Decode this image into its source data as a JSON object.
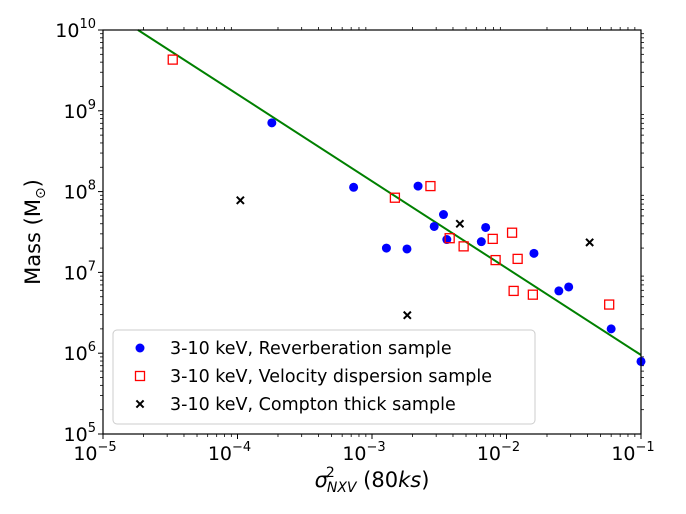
{
  "chart_data": {
    "type": "scatter",
    "xscale": "log",
    "yscale": "log",
    "xlim": [
      1e-05,
      0.1
    ],
    "ylim": [
      100000.0,
      10000000000.0
    ],
    "xlabel": {
      "sigma": "σ",
      "sup": "2",
      "sub": "NXV",
      "rest": " (80",
      "italic": "ks",
      "close": ")"
    },
    "ylabel": {
      "text": "Mass (M",
      "sub": "⊙",
      "close": ")"
    },
    "x_ticks": [
      {
        "value": 1e-05,
        "base": "10",
        "exp": "−5"
      },
      {
        "value": 0.0001,
        "base": "10",
        "exp": "−4"
      },
      {
        "value": 0.001,
        "base": "10",
        "exp": "−3"
      },
      {
        "value": 0.01,
        "base": "10",
        "exp": "−2"
      },
      {
        "value": 0.1,
        "base": "10",
        "exp": "−1"
      }
    ],
    "y_ticks": [
      {
        "value": 100000.0,
        "base": "10",
        "exp": "5"
      },
      {
        "value": 1000000.0,
        "base": "10",
        "exp": "6"
      },
      {
        "value": 10000000.0,
        "base": "10",
        "exp": "7"
      },
      {
        "value": 100000000.0,
        "base": "10",
        "exp": "8"
      },
      {
        "value": 1000000000.0,
        "base": "10",
        "exp": "9"
      },
      {
        "value": 10000000000.0,
        "base": "10",
        "exp": "10"
      }
    ],
    "fit_line": {
      "color": "#008000",
      "points": [
        [
          1.82e-05,
          10000000000.0
        ],
        [
          0.1,
          950000.0
        ]
      ]
    },
    "series": [
      {
        "name": "3-10 keV, Reverberation sample",
        "marker": "circle",
        "color": "#0000ff",
        "points": [
          [
            0.00018,
            710000000.0
          ],
          [
            0.00073,
            113000000.0
          ],
          [
            0.0022,
            117000000.0
          ],
          [
            0.00128,
            20000000.0
          ],
          [
            0.00182,
            19500000.0
          ],
          [
            0.0029,
            37000000.0
          ],
          [
            0.0034,
            52000000.0
          ],
          [
            0.0036,
            25500000.0
          ],
          [
            0.0065,
            24000000.0
          ],
          [
            0.007,
            36000000.0
          ],
          [
            0.016,
            17200000.0
          ],
          [
            0.0245,
            5900000.0
          ],
          [
            0.029,
            6600000.0
          ],
          [
            0.06,
            2000000.0
          ],
          [
            0.1,
            790000.0
          ]
        ]
      },
      {
        "name": "3-10 keV, Velocity dispersion sample",
        "marker": "square",
        "color": "#ff0000",
        "points": [
          [
            3.3e-05,
            4300000000.0
          ],
          [
            0.00148,
            84000000.0
          ],
          [
            0.00272,
            117000000.0
          ],
          [
            0.00378,
            26500000.0
          ],
          [
            0.0048,
            21000000.0
          ],
          [
            0.0079,
            26000000.0
          ],
          [
            0.0083,
            14200000.0
          ],
          [
            0.011,
            31000000.0
          ],
          [
            0.0121,
            14700000.0
          ],
          [
            0.0113,
            5900000.0
          ],
          [
            0.0157,
            5300000.0
          ],
          [
            0.058,
            4000000.0
          ]
        ]
      },
      {
        "name": "3-10 keV, Compton thick sample",
        "marker": "x",
        "color": "#000000",
        "points": [
          [
            0.000105,
            78000000.0
          ],
          [
            0.00183,
            2950000.0
          ],
          [
            0.0045,
            40000000.0
          ],
          [
            0.0415,
            23500000.0
          ]
        ]
      }
    ],
    "legend_position": "lower-left"
  }
}
